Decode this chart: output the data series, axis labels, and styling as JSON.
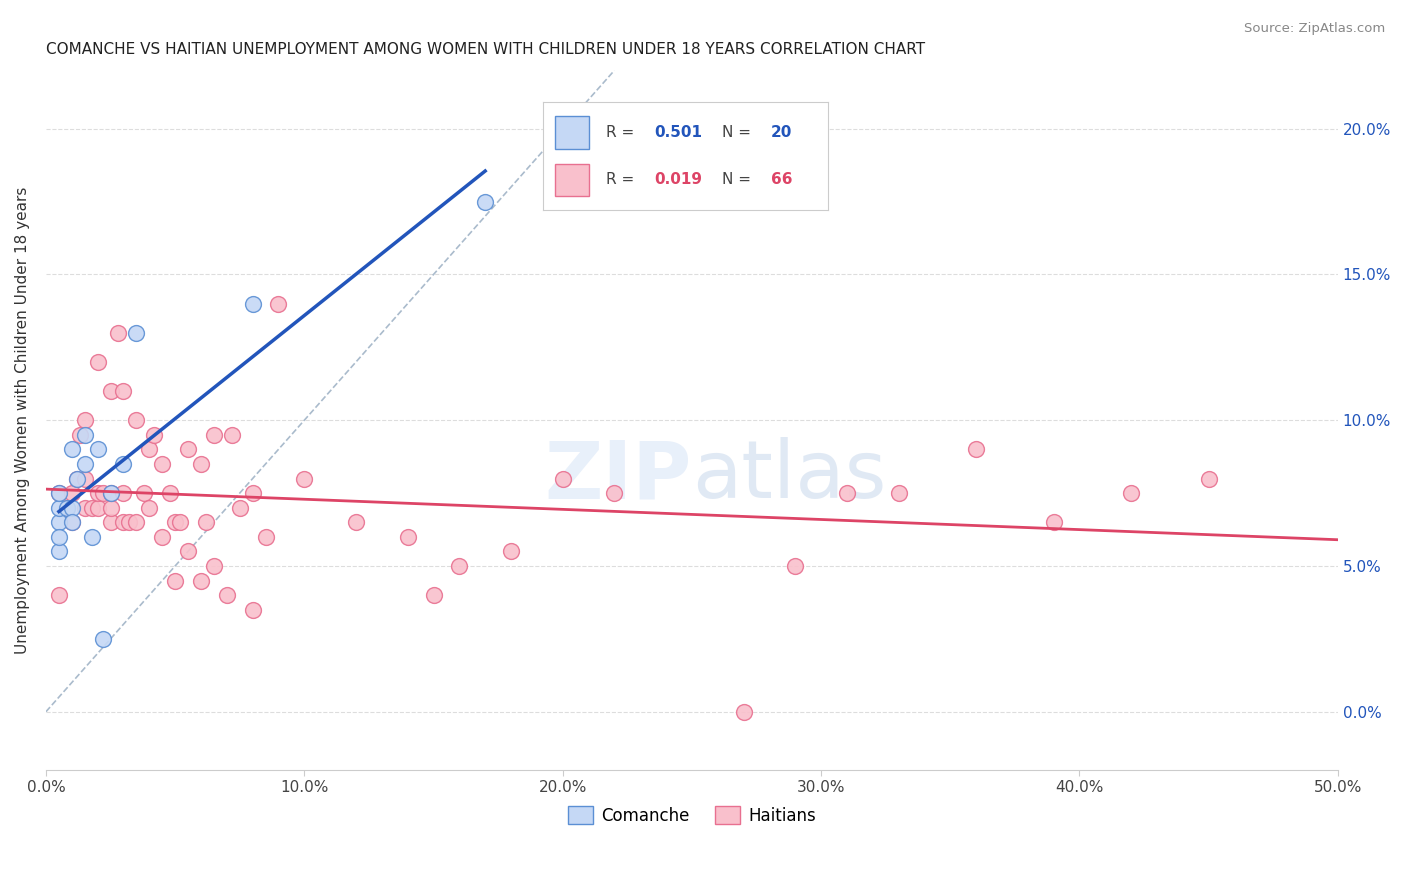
{
  "title": "COMANCHE VS HAITIAN UNEMPLOYMENT AMONG WOMEN WITH CHILDREN UNDER 18 YEARS CORRELATION CHART",
  "source": "Source: ZipAtlas.com",
  "ylabel": "Unemployment Among Women with Children Under 18 years",
  "xlim": [
    0.0,
    0.5
  ],
  "ylim": [
    -0.02,
    0.22
  ],
  "legend_blue_r": "R = 0.501",
  "legend_blue_n": "N = 20",
  "legend_pink_r": "R = 0.019",
  "legend_pink_n": "N = 66",
  "legend_label_blue": "Comanche",
  "legend_label_pink": "Haitians",
  "blue_fill": "#c5d8f5",
  "pink_fill": "#f9c0cc",
  "blue_edge": "#5b8fd4",
  "pink_edge": "#e87090",
  "blue_line": "#2255bb",
  "pink_line": "#dd4466",
  "diag_color": "#aabbcc",
  "comanche_x": [
    0.005,
    0.005,
    0.005,
    0.005,
    0.005,
    0.008,
    0.01,
    0.01,
    0.01,
    0.012,
    0.015,
    0.015,
    0.018,
    0.02,
    0.022,
    0.025,
    0.03,
    0.035,
    0.08,
    0.17
  ],
  "comanche_y": [
    0.065,
    0.055,
    0.07,
    0.075,
    0.06,
    0.07,
    0.07,
    0.065,
    0.09,
    0.08,
    0.085,
    0.095,
    0.06,
    0.09,
    0.025,
    0.075,
    0.085,
    0.13,
    0.14,
    0.175
  ],
  "haitian_x": [
    0.005,
    0.005,
    0.008,
    0.01,
    0.01,
    0.012,
    0.013,
    0.015,
    0.015,
    0.015,
    0.018,
    0.02,
    0.02,
    0.02,
    0.022,
    0.025,
    0.025,
    0.025,
    0.025,
    0.028,
    0.03,
    0.03,
    0.03,
    0.032,
    0.035,
    0.035,
    0.038,
    0.04,
    0.04,
    0.042,
    0.045,
    0.045,
    0.048,
    0.05,
    0.05,
    0.052,
    0.055,
    0.055,
    0.06,
    0.06,
    0.062,
    0.065,
    0.065,
    0.07,
    0.072,
    0.075,
    0.08,
    0.08,
    0.085,
    0.09,
    0.1,
    0.12,
    0.14,
    0.15,
    0.16,
    0.18,
    0.2,
    0.22,
    0.27,
    0.29,
    0.31,
    0.33,
    0.36,
    0.39,
    0.42,
    0.45
  ],
  "haitian_y": [
    0.04,
    0.075,
    0.07,
    0.065,
    0.075,
    0.08,
    0.095,
    0.07,
    0.08,
    0.1,
    0.07,
    0.07,
    0.075,
    0.12,
    0.075,
    0.065,
    0.07,
    0.075,
    0.11,
    0.13,
    0.065,
    0.075,
    0.11,
    0.065,
    0.065,
    0.1,
    0.075,
    0.07,
    0.09,
    0.095,
    0.06,
    0.085,
    0.075,
    0.045,
    0.065,
    0.065,
    0.055,
    0.09,
    0.045,
    0.085,
    0.065,
    0.05,
    0.095,
    0.04,
    0.095,
    0.07,
    0.075,
    0.035,
    0.06,
    0.14,
    0.08,
    0.065,
    0.06,
    0.04,
    0.05,
    0.055,
    0.08,
    0.075,
    0.0,
    0.05,
    0.075,
    0.075,
    0.09,
    0.065,
    0.075,
    0.08
  ]
}
